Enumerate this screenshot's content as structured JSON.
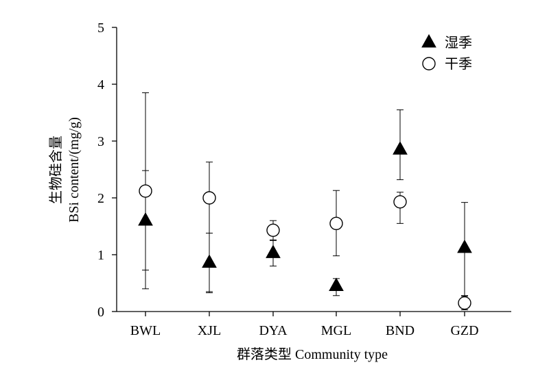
{
  "chart_data": {
    "type": "scatter",
    "title": "",
    "xlabel": "群落类型 Community type",
    "ylabel_line1": "生物硅含量",
    "ylabel_line2": "BSi content/(mg/g)",
    "categories": [
      "BWL",
      "XJL",
      "DYA",
      "MGL",
      "BND",
      "GZD"
    ],
    "ylim": [
      0,
      5
    ],
    "yticks": [
      0,
      1,
      2,
      3,
      4,
      5
    ],
    "grid": false,
    "legend_position": "top-right",
    "series": [
      {
        "name": "湿季",
        "marker": "filled-triangle",
        "color": "#000000",
        "values": [
          1.6,
          0.86,
          1.03,
          0.45,
          2.85,
          1.12
        ],
        "error_low": [
          0.4,
          0.35,
          0.8,
          0.28,
          2.32,
          0.28
        ],
        "error_high": [
          3.85,
          1.38,
          1.25,
          0.58,
          3.55,
          1.92
        ]
      },
      {
        "name": "干季",
        "marker": "open-circle",
        "color": "#000000",
        "values": [
          2.12,
          2.0,
          1.43,
          1.55,
          1.93,
          0.15
        ],
        "error_low": [
          0.73,
          0.33,
          1.26,
          0.98,
          1.55,
          0.03
        ],
        "error_high": [
          2.48,
          2.63,
          1.6,
          2.13,
          2.1,
          0.27
        ]
      }
    ]
  }
}
